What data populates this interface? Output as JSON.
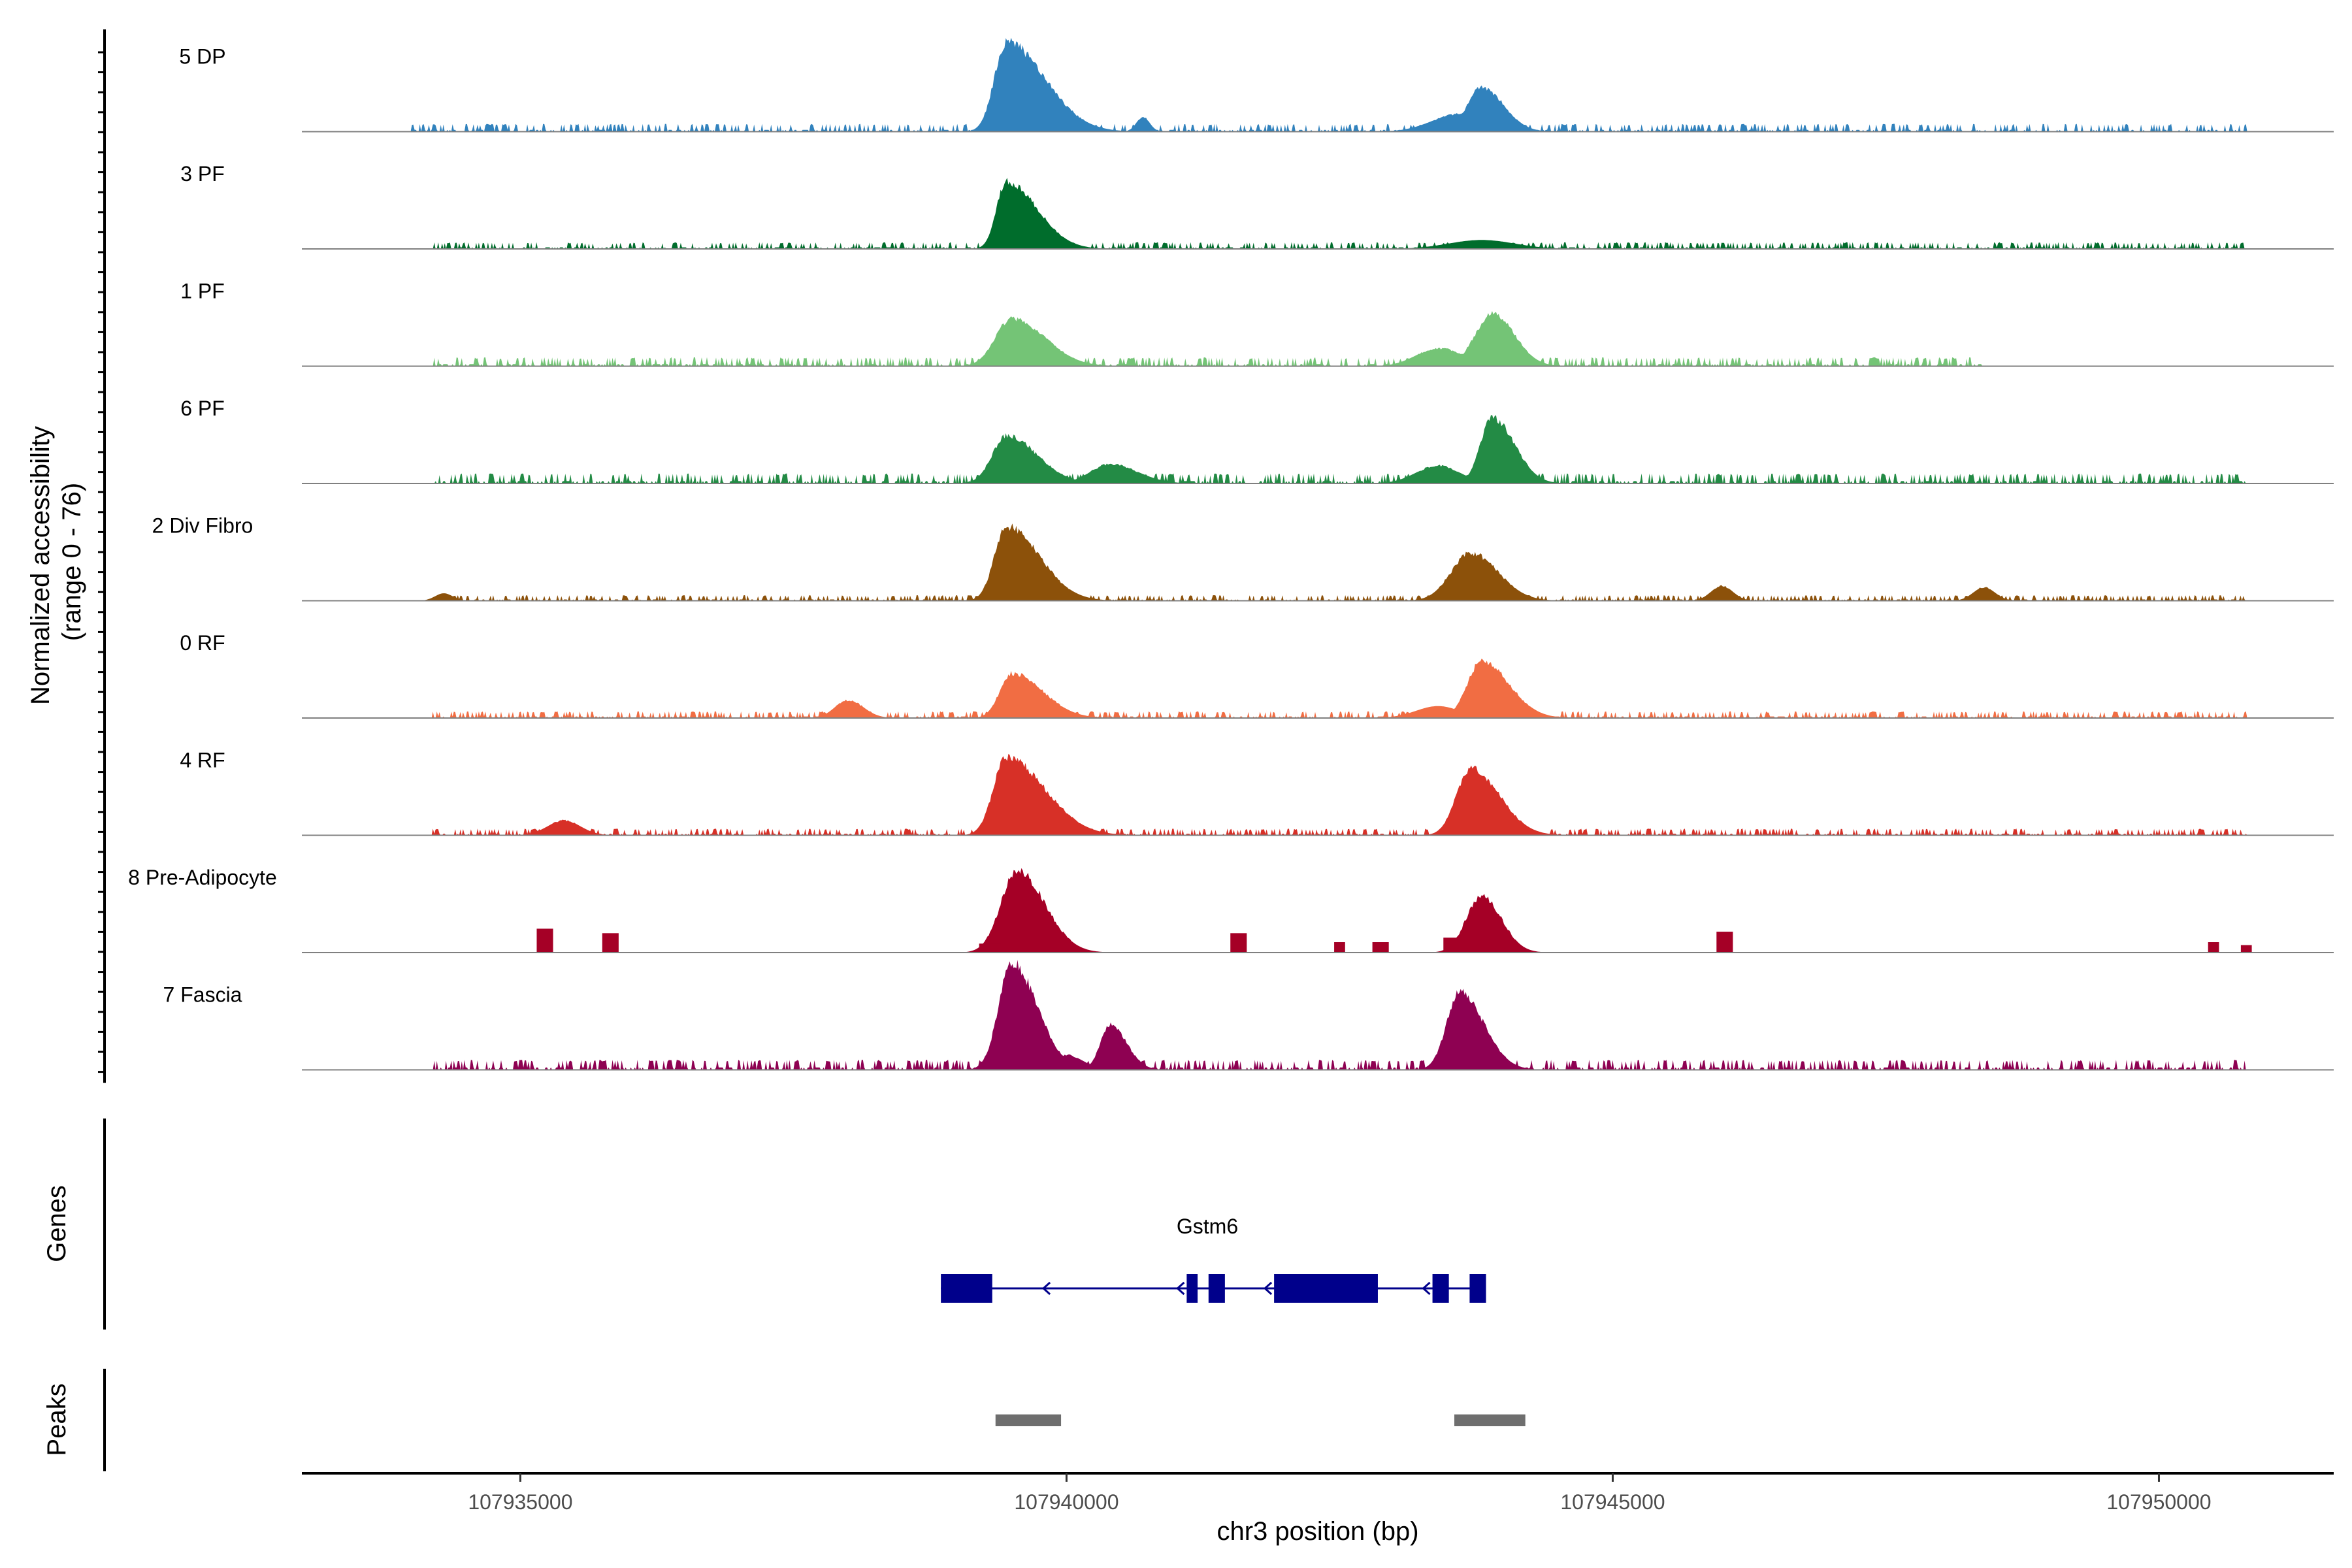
{
  "chart_data": {
    "type": "area",
    "title": "",
    "ylabel": "Normalized accessibility\n(range 0 - 76)",
    "ylabel_lines": [
      "Normalized accessibility",
      "(range 0 - 76)"
    ],
    "xlabel": "chr3 position (bp)",
    "xlim": [
      107933000,
      107951600
    ],
    "ylim": [
      0,
      76
    ],
    "x_ticks": [
      107935000,
      107940000,
      107945000,
      107950000
    ],
    "x_tick_labels": [
      "107935000",
      "107940000",
      "107945000",
      "107950000"
    ],
    "series": [
      {
        "name": "5 DP",
        "color": "#3182BD",
        "peaks": [
          [
            107939450,
            60,
            110,
            350
          ],
          [
            107940700,
            10,
            60,
            60
          ],
          [
            107943800,
            30,
            130,
            200
          ],
          [
            107943600,
            12,
            250,
            300
          ]
        ],
        "background": [
          [
            107934000,
            107950800,
            3.5
          ]
        ]
      },
      {
        "name": "3 PF",
        "color": "#006D2C",
        "peaks": [
          [
            107939450,
            45,
            90,
            280
          ],
          [
            107943800,
            6,
            300,
            300
          ]
        ],
        "background": [
          [
            107934200,
            107950800,
            3
          ]
        ]
      },
      {
        "name": "1 PF",
        "color": "#74C476",
        "peaks": [
          [
            107939500,
            32,
            150,
            300
          ],
          [
            107943900,
            35,
            160,
            200
          ],
          [
            107943400,
            12,
            200,
            250
          ],
          [
            107940000,
            6,
            100,
            100
          ]
        ],
        "background": [
          [
            107934200,
            107948400,
            4
          ]
        ]
      },
      {
        "name": "6 PF",
        "color": "#238B45",
        "peaks": [
          [
            107939450,
            32,
            130,
            280
          ],
          [
            107943900,
            44,
            110,
            200
          ],
          [
            107943400,
            12,
            200,
            200
          ],
          [
            107940400,
            13,
            180,
            250
          ]
        ],
        "background": [
          [
            107934200,
            107950800,
            4.5
          ]
        ]
      },
      {
        "name": "2 Div Fibro",
        "color": "#8C510A",
        "peaks": [
          [
            107939450,
            50,
            110,
            300
          ],
          [
            107943700,
            32,
            180,
            250
          ],
          [
            107946000,
            10,
            100,
            100
          ],
          [
            107948400,
            9,
            100,
            100
          ],
          [
            107934300,
            5,
            80,
            80
          ]
        ],
        "background": [
          [
            107934200,
            107950800,
            2.5
          ]
        ]
      },
      {
        "name": "0 RF",
        "color": "#F16D43",
        "peaks": [
          [
            107939500,
            30,
            110,
            280
          ],
          [
            107943800,
            38,
            130,
            250
          ],
          [
            107938000,
            12,
            120,
            140
          ],
          [
            107943400,
            8,
            200,
            200
          ]
        ],
        "background": [
          [
            107934200,
            107950800,
            3
          ]
        ]
      },
      {
        "name": "4 RF",
        "color": "#D73027",
        "peaks": [
          [
            107939450,
            52,
            120,
            350
          ],
          [
            107943700,
            45,
            130,
            260
          ],
          [
            107935400,
            10,
            150,
            150
          ]
        ],
        "background": [
          [
            107934200,
            107950800,
            3
          ]
        ]
      },
      {
        "name": "8 Pre-Adipocyte",
        "color": "#A50026",
        "peaks": [
          [
            107939550,
            55,
            150,
            250
          ],
          [
            107943800,
            38,
            140,
            180
          ]
        ],
        "blocks": [
          [
            107935150,
            107935300,
            16
          ],
          [
            107935750,
            107935900,
            13
          ],
          [
            107941500,
            107941650,
            13
          ],
          [
            107942450,
            107942550,
            7
          ],
          [
            107942800,
            107942950,
            7
          ],
          [
            107945950,
            107946100,
            14
          ],
          [
            107950450,
            107950550,
            7
          ],
          [
            107950750,
            107950850,
            5
          ],
          [
            107939200,
            107939400,
            6
          ],
          [
            107943450,
            107943600,
            10
          ]
        ],
        "background": []
      },
      {
        "name": "7 Fascia",
        "color": "#8E0152",
        "peaks": [
          [
            107939500,
            72,
            120,
            230
          ],
          [
            107943600,
            52,
            120,
            220
          ],
          [
            107940400,
            30,
            90,
            150
          ],
          [
            107940000,
            10,
            150,
            150
          ]
        ],
        "background": [
          [
            107934200,
            107950800,
            4.5
          ]
        ]
      }
    ],
    "genes": {
      "track_label": "Genes",
      "name": "Gstm6",
      "strand": "-",
      "start": 107938850,
      "end": 107943750,
      "exons": [
        [
          107938850,
          107939320
        ],
        [
          107941100,
          107941200
        ],
        [
          107941300,
          107941450
        ],
        [
          107941900,
          107942850
        ],
        [
          107943350,
          107943500
        ],
        [
          107943690,
          107943840
        ]
      ]
    },
    "peaks": {
      "track_label": "Peaks",
      "regions": [
        [
          107939350,
          107939950
        ],
        [
          107943550,
          107944200
        ]
      ]
    }
  }
}
